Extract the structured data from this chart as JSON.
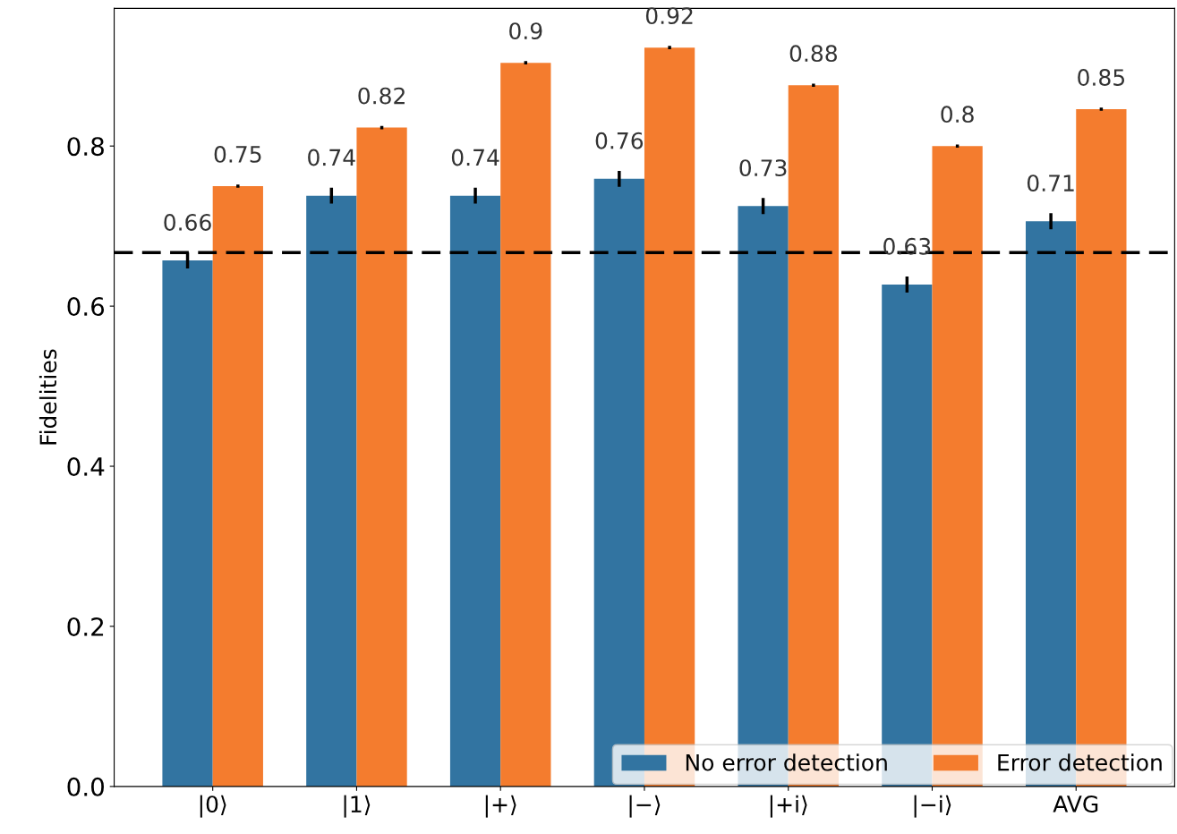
{
  "chart_data": {
    "type": "bar",
    "ylabel": "Fidelities",
    "categories": [
      "|0⟩",
      "|1⟩",
      "|+⟩",
      "|−⟩",
      "|+i⟩",
      "|−i⟩",
      "AVG"
    ],
    "series": [
      {
        "name": "No error detection",
        "color": "#3274a1",
        "values": [
          0.657,
          0.738,
          0.738,
          0.759,
          0.725,
          0.627,
          0.706
        ],
        "errors": [
          0.01,
          0.01,
          0.01,
          0.01,
          0.01,
          0.01,
          0.01
        ],
        "value_labels": [
          "0.66",
          "0.74",
          "0.74",
          "0.76",
          "0.73",
          "0.63",
          "0.71"
        ]
      },
      {
        "name": "Error detection",
        "color": "#f47c2e",
        "values": [
          0.75,
          0.823,
          0.904,
          0.923,
          0.876,
          0.8,
          0.846
        ],
        "errors": [
          0.002,
          0.002,
          0.002,
          0.002,
          0.002,
          0.002,
          0.002
        ],
        "value_labels": [
          "0.75",
          "0.82",
          "0.9",
          "0.92",
          "0.88",
          "0.8",
          "0.85"
        ]
      }
    ],
    "ylim": [
      0,
      0.972
    ],
    "yticks": [
      {
        "value": 0,
        "label": "0.0"
      },
      0.2,
      0.4,
      0.6,
      0.8
    ],
    "ref_lines": [
      {
        "axis": "y",
        "value": 0.667,
        "color": "#000000",
        "line_style": "dashed"
      }
    ],
    "grid": false,
    "legend": "bottom right"
  }
}
